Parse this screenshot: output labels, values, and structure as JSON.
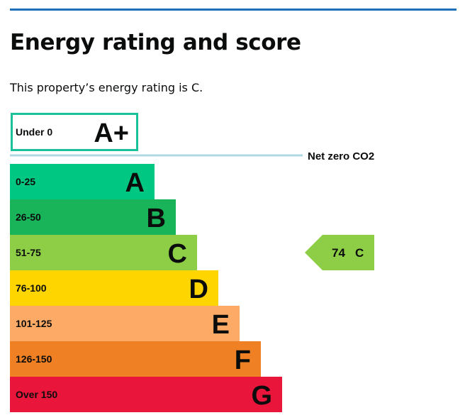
{
  "page": {
    "heading": "Energy rating and score",
    "summary": "This property’s energy rating is C."
  },
  "chart_data": {
    "type": "bar",
    "categories": [
      "Under 0",
      "0-25",
      "26-50",
      "51-75",
      "76-100",
      "101-125",
      "126-150",
      "Over 150"
    ],
    "bands": [
      {
        "range": "Under 0",
        "letter": "A+",
        "color": "#ffffff",
        "outline": "#1bc19a"
      },
      {
        "range": "0-25",
        "letter": "A",
        "color": "#00c781"
      },
      {
        "range": "26-50",
        "letter": "B",
        "color": "#19b459"
      },
      {
        "range": "51-75",
        "letter": "C",
        "color": "#8dce46"
      },
      {
        "range": "76-100",
        "letter": "D",
        "color": "#ffd500"
      },
      {
        "range": "101-125",
        "letter": "E",
        "color": "#fcaa65"
      },
      {
        "range": "126-150",
        "letter": "F",
        "color": "#ef8023"
      },
      {
        "range": "Over 150",
        "letter": "G",
        "color": "#e9153b"
      }
    ],
    "net_zero": {
      "label": "Net zero CO2",
      "color": "#b1d9e4"
    },
    "current": {
      "score": "74",
      "rating": "C",
      "color": "#8dce46"
    }
  }
}
